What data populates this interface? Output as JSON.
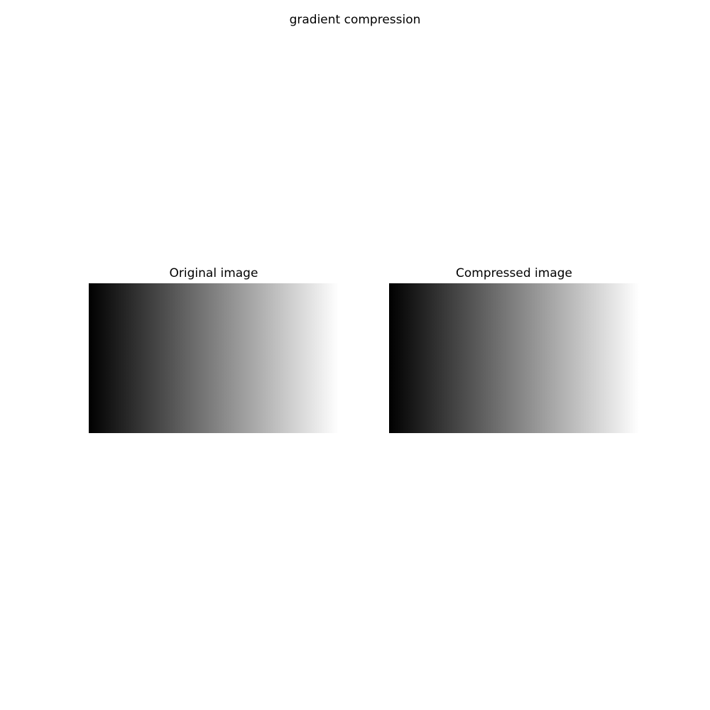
{
  "figure": {
    "title": "gradient compression"
  },
  "panels": [
    {
      "title": "Original image",
      "gradient_start_color": "#000000",
      "gradient_end_color": "#ffffff"
    },
    {
      "title": "Compressed image",
      "gradient_start_color": "#000000",
      "gradient_end_color": "#ffffff"
    }
  ]
}
